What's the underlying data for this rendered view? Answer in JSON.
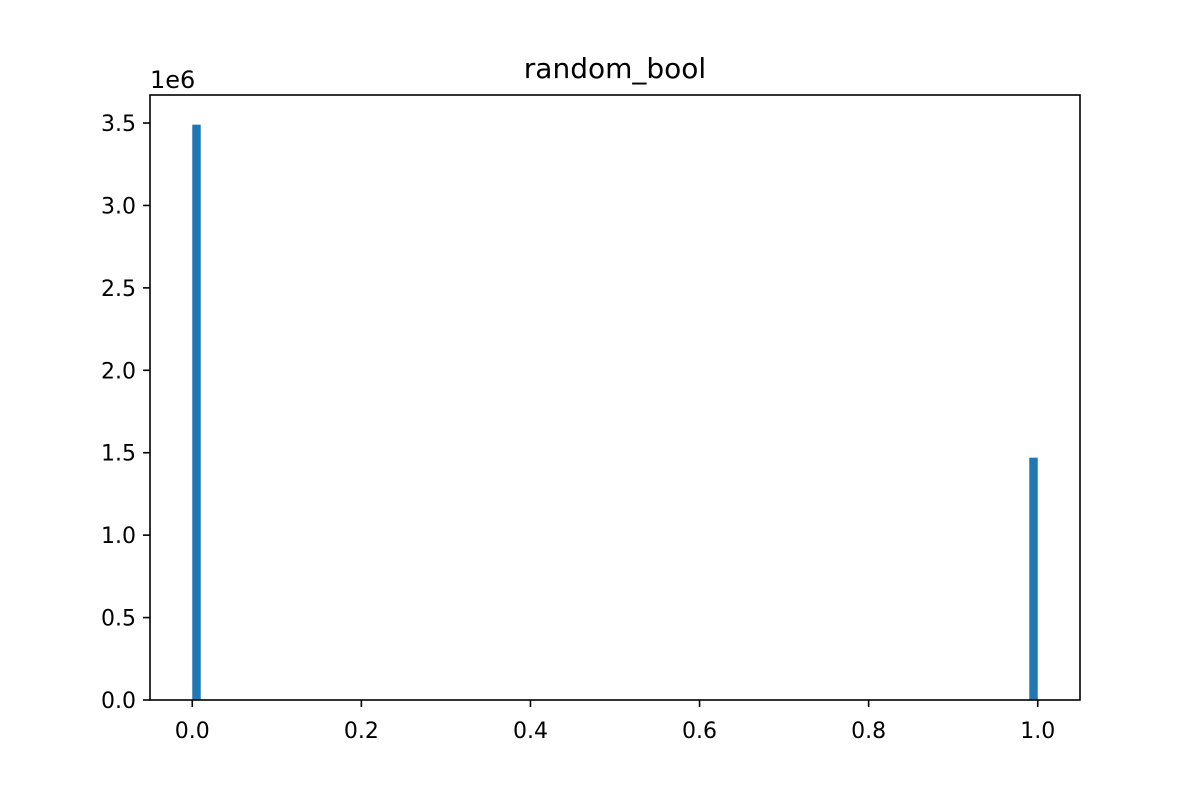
{
  "chart_data": {
    "type": "bar",
    "title": "random_bool",
    "xlabel": "",
    "ylabel": "",
    "y_offset_label": "1e6",
    "y_scale_factor": 1000000,
    "xlim": [
      -0.05,
      1.05
    ],
    "ylim": [
      0,
      3670000
    ],
    "x_ticks": [
      0.0,
      0.2,
      0.4,
      0.6,
      0.8,
      1.0
    ],
    "x_tick_labels": [
      "0.0",
      "0.2",
      "0.4",
      "0.6",
      "0.8",
      "1.0"
    ],
    "y_ticks": [
      0,
      500000,
      1000000,
      1500000,
      2000000,
      2500000,
      3000000,
      3500000
    ],
    "y_tick_labels": [
      "0.0",
      "0.5",
      "1.0",
      "1.5",
      "2.0",
      "2.5",
      "3.0",
      "3.5"
    ],
    "bin_width": 0.01,
    "bars": [
      {
        "x_start": 0.0,
        "x_end": 0.01,
        "value": 3490000
      },
      {
        "x_start": 0.99,
        "x_end": 1.0,
        "value": 1470000
      }
    ],
    "grid": false,
    "bar_color": "#1f77b4"
  }
}
